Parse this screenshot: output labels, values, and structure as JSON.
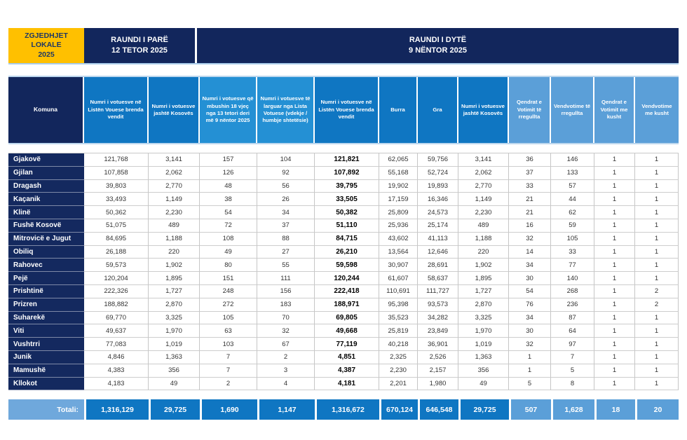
{
  "banner": {
    "badge": "ZGJEDHJET\nLOKALE\n2025",
    "round1": "RAUNDI I PARË\n12 TETOR 2025",
    "round2": "RAUNDI I DYTË\n9 NËNTOR 2025"
  },
  "table": {
    "columns": [
      {
        "label": "Komuna",
        "group": "komuna"
      },
      {
        "label": "Numri i votuesve në Listën Vouese brenda vendit",
        "group": "mid"
      },
      {
        "label": "Numri i votuesve jashtë Kosovës",
        "group": "mid"
      },
      {
        "label": "Numri i votuesve që mbushin 18 vjeç nga 13 tetori deri më 9 nëntor 2025",
        "group": "bright"
      },
      {
        "label": "Numri i votuesve të larguar nga Lista Votuese (vdekje / humbje shtetësie)",
        "group": "bright"
      },
      {
        "label": "Numri i votuesve në Listën Vouese brenda vendit",
        "group": "mid"
      },
      {
        "label": "Burra",
        "group": "mid"
      },
      {
        "label": "Gra",
        "group": "mid"
      },
      {
        "label": "Numri i votuesve jashtë Kosovës",
        "group": "mid"
      },
      {
        "label": "Qendrat e Votimit të rregullta",
        "group": "light"
      },
      {
        "label": "Vendvotime të rregullta",
        "group": "light"
      },
      {
        "label": "Qendrat e Votimit me kusht",
        "group": "light"
      },
      {
        "label": "Vendvotime me kusht",
        "group": "light"
      }
    ],
    "rows": [
      {
        "name": "Gjakovë",
        "values": [
          "121,768",
          "3,141",
          "157",
          "104",
          "121,821",
          "62,065",
          "59,756",
          "3,141",
          "36",
          "146",
          "1",
          "1"
        ]
      },
      {
        "name": "Gjilan",
        "values": [
          "107,858",
          "2,062",
          "126",
          "92",
          "107,892",
          "55,168",
          "52,724",
          "2,062",
          "37",
          "133",
          "1",
          "1"
        ]
      },
      {
        "name": "Dragash",
        "values": [
          "39,803",
          "2,770",
          "48",
          "56",
          "39,795",
          "19,902",
          "19,893",
          "2,770",
          "33",
          "57",
          "1",
          "1"
        ]
      },
      {
        "name": "Kaçanik",
        "values": [
          "33,493",
          "1,149",
          "38",
          "26",
          "33,505",
          "17,159",
          "16,346",
          "1,149",
          "21",
          "44",
          "1",
          "1"
        ]
      },
      {
        "name": "Klinë",
        "values": [
          "50,362",
          "2,230",
          "54",
          "34",
          "50,382",
          "25,809",
          "24,573",
          "2,230",
          "21",
          "62",
          "1",
          "1"
        ]
      },
      {
        "name": "Fushë Kosovë",
        "values": [
          "51,075",
          "489",
          "72",
          "37",
          "51,110",
          "25,936",
          "25,174",
          "489",
          "16",
          "59",
          "1",
          "1"
        ]
      },
      {
        "name": "Mitrovicë e Jugut",
        "values": [
          "84,695",
          "1,188",
          "108",
          "88",
          "84,715",
          "43,602",
          "41,113",
          "1,188",
          "32",
          "105",
          "1",
          "1"
        ]
      },
      {
        "name": "Obiliq",
        "values": [
          "26,188",
          "220",
          "49",
          "27",
          "26,210",
          "13,564",
          "12,646",
          "220",
          "14",
          "33",
          "1",
          "1"
        ]
      },
      {
        "name": "Rahovec",
        "values": [
          "59,573",
          "1,902",
          "80",
          "55",
          "59,598",
          "30,907",
          "28,691",
          "1,902",
          "34",
          "77",
          "1",
          "1"
        ]
      },
      {
        "name": "Pejë",
        "values": [
          "120,204",
          "1,895",
          "151",
          "111",
          "120,244",
          "61,607",
          "58,637",
          "1,895",
          "30",
          "140",
          "1",
          "1"
        ]
      },
      {
        "name": "Prishtinë",
        "values": [
          "222,326",
          "1,727",
          "248",
          "156",
          "222,418",
          "110,691",
          "111,727",
          "1,727",
          "54",
          "268",
          "1",
          "2"
        ]
      },
      {
        "name": "Prizren",
        "values": [
          "188,882",
          "2,870",
          "272",
          "183",
          "188,971",
          "95,398",
          "93,573",
          "2,870",
          "76",
          "236",
          "1",
          "2"
        ]
      },
      {
        "name": "Suharekë",
        "values": [
          "69,770",
          "3,325",
          "105",
          "70",
          "69,805",
          "35,523",
          "34,282",
          "3,325",
          "34",
          "87",
          "1",
          "1"
        ]
      },
      {
        "name": "Viti",
        "values": [
          "49,637",
          "1,970",
          "63",
          "32",
          "49,668",
          "25,819",
          "23,849",
          "1,970",
          "30",
          "64",
          "1",
          "1"
        ]
      },
      {
        "name": "Vushtrri",
        "values": [
          "77,083",
          "1,019",
          "103",
          "67",
          "77,119",
          "40,218",
          "36,901",
          "1,019",
          "32",
          "97",
          "1",
          "1"
        ]
      },
      {
        "name": "Junik",
        "values": [
          "4,846",
          "1,363",
          "7",
          "2",
          "4,851",
          "2,325",
          "2,526",
          "1,363",
          "1",
          "7",
          "1",
          "1"
        ]
      },
      {
        "name": "Mamushë",
        "values": [
          "4,383",
          "356",
          "7",
          "3",
          "4,387",
          "2,230",
          "2,157",
          "356",
          "1",
          "5",
          "1",
          "1"
        ]
      },
      {
        "name": "Kllokot",
        "values": [
          "4,183",
          "49",
          "2",
          "4",
          "4,181",
          "2,201",
          "1,980",
          "49",
          "5",
          "8",
          "1",
          "1"
        ]
      }
    ],
    "total_label": "Totali:",
    "totals": [
      "1,316,129",
      "29,725",
      "1,690",
      "1,147",
      "1,316,672",
      "670,124",
      "646,548",
      "29,725",
      "507",
      "1,628",
      "18",
      "20"
    ]
  },
  "colors": {
    "badge_yellow": "#FFC000",
    "navy": "#12265C",
    "blue_mid": "#0F76C2",
    "blue_bright": "#2490D4",
    "blue_light": "#5B9FD8",
    "totals_label_bg": "#6FA8DC"
  }
}
